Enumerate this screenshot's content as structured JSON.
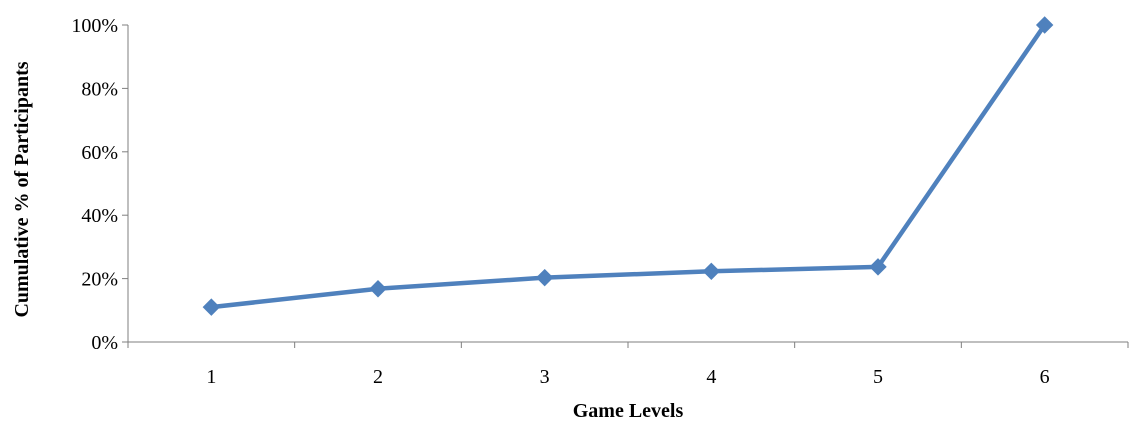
{
  "chart_data": {
    "type": "line",
    "title": "",
    "xlabel": "Game Levels",
    "ylabel": "Cumulative % of Participants",
    "categories": [
      "1",
      "2",
      "3",
      "4",
      "5",
      "6"
    ],
    "series": [
      {
        "values": [
          11,
          16.8,
          20.3,
          22.3,
          23.7,
          100
        ]
      }
    ],
    "ylim": [
      0,
      100
    ],
    "yticks": [
      0,
      20,
      40,
      60,
      80,
      100
    ],
    "ytick_labels": [
      "0%",
      "20%",
      "40%",
      "60%",
      "80%",
      "100%"
    ],
    "grid": false,
    "legend": "none",
    "colors": {
      "line": "#4f81bd",
      "axis": "#7f7f7f"
    },
    "marker": "diamond"
  }
}
